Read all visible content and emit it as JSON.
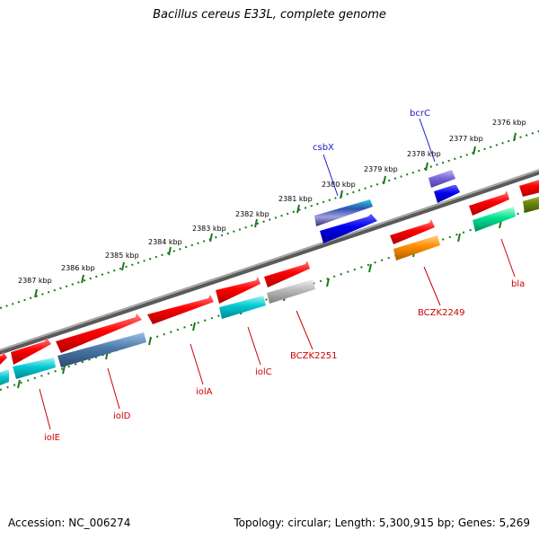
{
  "title": "Bacillus cereus E33L, complete genome",
  "footer": {
    "accession": "Accession: NC_006274",
    "genome_info": "Topology: circular; Length: 5,300,915 bp; Genes: 5,269"
  },
  "ruler": {
    "labels": [
      "2376 kbp",
      "2377 kbp",
      "2378 kbp",
      "2379 kbp",
      "2380 kbp",
      "2381 kbp",
      "2382 kbp",
      "2383 kbp",
      "2384 kbp",
      "2385 kbp",
      "2386 kbp",
      "2387 kbp"
    ]
  },
  "genes": {
    "bla": "bla",
    "BCZK2249": "BCZK2249",
    "BCZK2251": "BCZK2251",
    "iolC": "iolC",
    "iolA": "iolA",
    "iolD": "iolD",
    "iolE": "iolE",
    "csbX": "csbX",
    "bcrC": "bcrC"
  },
  "colors": {
    "red": "#ff0000",
    "cyan": "#00c8d0",
    "blue": "#0000ee",
    "steel": "#4a7aa8",
    "orange": "#ff8c00",
    "green": "#00e090",
    "olive": "#6a8a10",
    "purple": "#7a6ad8",
    "gray": "#b8b8b8",
    "ruler": "#1a7a1a",
    "backbone": "#808080"
  }
}
